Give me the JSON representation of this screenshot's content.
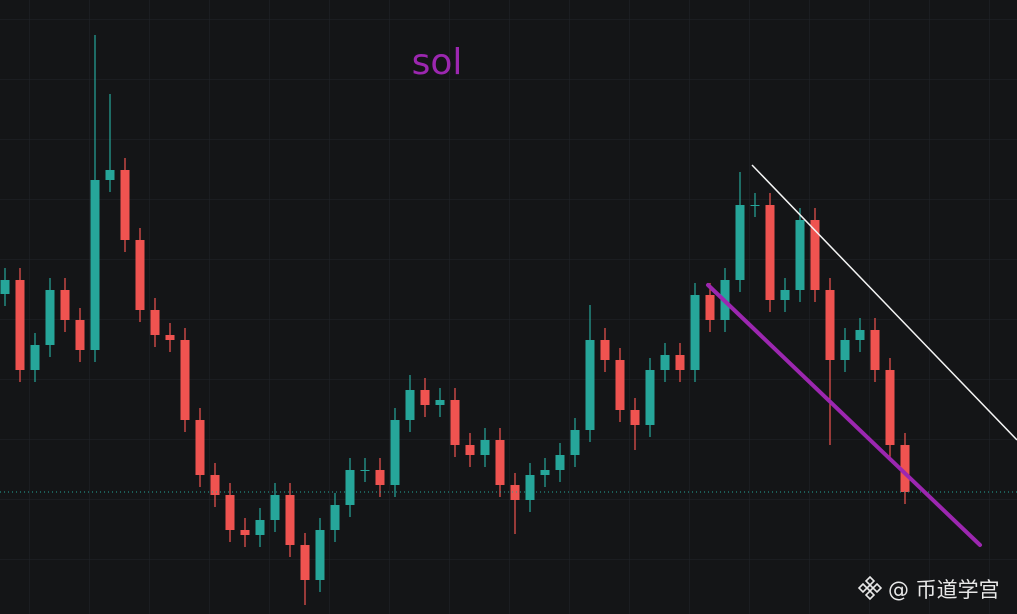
{
  "chart_data": {
    "type": "candlestick",
    "title": "sol",
    "watermark": "@ 币道学宫",
    "up_color": "#26a69a",
    "down_color": "#ef5350",
    "ylim": [
      0,
      614
    ],
    "grid": true,
    "open": [
      320,
      334,
      244,
      269,
      324,
      294,
      264,
      434,
      444,
      374,
      304,
      279,
      274,
      194,
      139,
      119,
      84,
      79,
      94,
      119,
      69,
      34,
      84,
      109,
      144,
      144,
      129,
      194,
      224,
      209,
      214,
      169,
      159,
      174,
      129,
      114,
      139,
      144,
      159,
      184,
      274,
      254,
      204,
      189,
      244,
      259,
      244,
      319,
      294,
      334,
      409,
      409,
      314,
      324,
      394,
      324,
      254,
      274,
      284,
      244,
      169
    ],
    "high": [
      346,
      346,
      281,
      336,
      336,
      306,
      579,
      520,
      456,
      386,
      316,
      291,
      286,
      206,
      151,
      131,
      96,
      106,
      131,
      131,
      81,
      96,
      121,
      156,
      156,
      156,
      206,
      239,
      236,
      226,
      226,
      181,
      186,
      186,
      141,
      151,
      156,
      171,
      196,
      309,
      286,
      266,
      216,
      256,
      271,
      271,
      331,
      331,
      346,
      442,
      421,
      421,
      336,
      406,
      406,
      336,
      286,
      296,
      296,
      256,
      181
    ],
    "low": [
      308,
      232,
      232,
      257,
      282,
      252,
      252,
      422,
      362,
      292,
      267,
      262,
      182,
      127,
      107,
      72,
      67,
      67,
      82,
      57,
      9,
      22,
      72,
      97,
      132,
      117,
      117,
      182,
      197,
      197,
      157,
      147,
      147,
      117,
      80,
      102,
      127,
      132,
      147,
      172,
      242,
      192,
      164,
      177,
      232,
      232,
      232,
      282,
      282,
      322,
      397,
      302,
      302,
      312,
      312,
      169,
      242,
      262,
      232,
      157,
      110
    ],
    "close": [
      334,
      244,
      269,
      324,
      294,
      264,
      434,
      444,
      374,
      304,
      279,
      274,
      194,
      139,
      119,
      84,
      79,
      94,
      119,
      69,
      34,
      84,
      109,
      144,
      144,
      129,
      194,
      224,
      209,
      214,
      169,
      159,
      174,
      129,
      114,
      139,
      144,
      159,
      184,
      274,
      254,
      204,
      189,
      244,
      259,
      244,
      319,
      294,
      334,
      409,
      409,
      314,
      324,
      394,
      324,
      254,
      274,
      284,
      244,
      169,
      122
    ]
  }
}
